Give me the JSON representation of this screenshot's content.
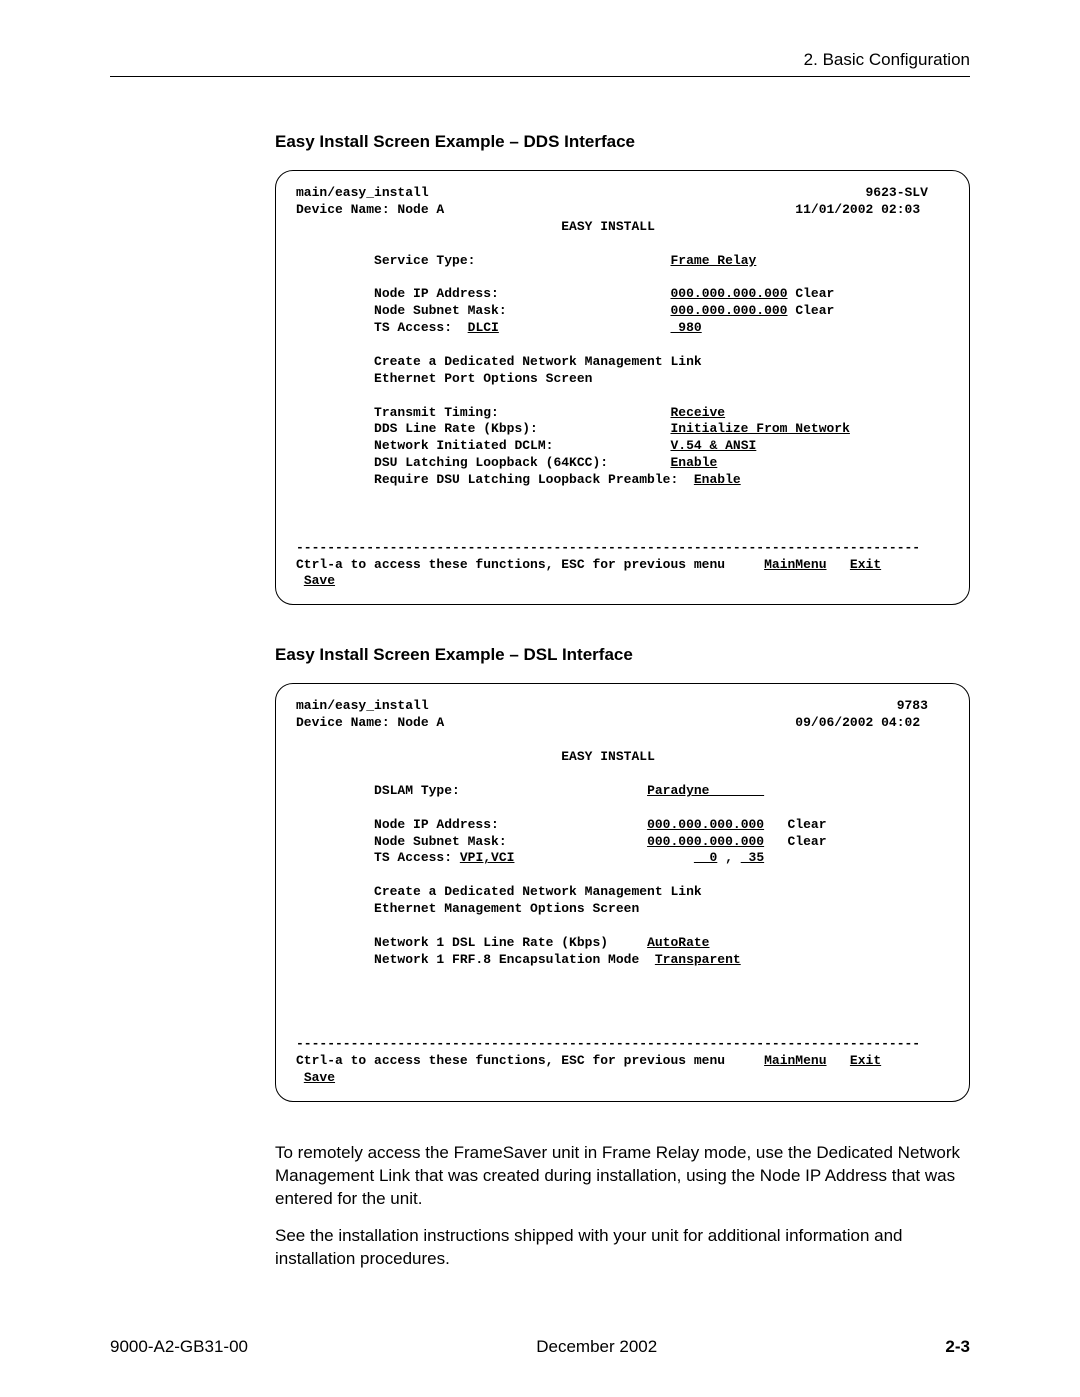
{
  "header": {
    "chapter": "2. Basic Configuration"
  },
  "section1": {
    "heading": "Easy Install Screen Example – DDS Interface",
    "term": {
      "path": "main/easy_install",
      "model": "9623-SLV",
      "device_label": "Device Name: Node A",
      "datetime": "11/01/2002 02:03",
      "title": "EASY INSTALL",
      "service_type_label": "Service Type:",
      "service_type_value": "Frame Relay",
      "ip_label": "Node IP Address:",
      "ip_value": "000.000.000.000",
      "ip_clear": "Clear",
      "mask_label": "Node Subnet Mask:",
      "mask_value": "000.000.000.000",
      "mask_clear": "Clear",
      "ts_label": "TS Access:",
      "ts_mode": "DLCI",
      "ts_value": " 980",
      "link_line1": "Create a Dedicated Network Management Link",
      "link_line2": "Ethernet Port Options Screen",
      "tt_label": "Transmit Timing:",
      "tt_value": "Receive",
      "rate_label": "DDS Line Rate (Kbps):",
      "rate_value": "Initialize From Network",
      "dclm_label": "Network Initiated DCLM:",
      "dclm_value": "V.54 & ANSI",
      "loopback_label": "DSU Latching Loopback (64KCC):",
      "loopback_value": "Enable",
      "preamble_label": "Require DSU Latching Loopback Preamble:",
      "preamble_value": "Enable",
      "divider": "--------------------------------------------------------------------------------",
      "help_line": "Ctrl-a to access these functions, ESC for previous menu",
      "mainmenu": "MainMenu",
      "exit": "Exit",
      "save": "Save"
    }
  },
  "section2": {
    "heading": "Easy Install Screen Example – DSL Interface",
    "term": {
      "path": "main/easy_install",
      "model": "9783",
      "device_label": "Device Name: Node A",
      "datetime": "09/06/2002 04:02",
      "title": "EASY INSTALL",
      "dslam_label": "DSLAM Type:",
      "dslam_value": "Paradyne       ",
      "ip_label": "Node IP Address:",
      "ip_value": "000.000.000.000",
      "ip_clear": "Clear",
      "mask_label": "Node Subnet Mask:",
      "mask_value": "000.000.000.000",
      "mask_clear": "Clear",
      "ts_label": "TS Access:",
      "ts_mode": "VPI,VCI",
      "ts_v1": "  0",
      "ts_sep": " ,",
      "ts_v2": " 35",
      "link_line1": "Create a Dedicated Network Management Link",
      "link_line2": "Ethernet Management Options Screen",
      "rate_label": "Network 1 DSL Line Rate (Kbps)",
      "rate_value": "AutoRate",
      "encap_label": "Network 1 FRF.8 Encapsulation Mode",
      "encap_value": "Transparent",
      "divider": "--------------------------------------------------------------------------------",
      "help_line": "Ctrl-a to access these functions, ESC for previous menu",
      "mainmenu": "MainMenu",
      "exit": "Exit",
      "save": "Save"
    }
  },
  "paragraphs": {
    "p1": "To remotely access the FrameSaver unit in Frame Relay mode, use the Dedicated Network Management Link that was created during installation, using the Node IP Address that was entered for the unit.",
    "p2": "See the installation instructions shipped with your unit for additional information and installation procedures."
  },
  "footer": {
    "doc": "9000-A2-GB31-00",
    "date": "December 2002",
    "page": "2-3"
  }
}
